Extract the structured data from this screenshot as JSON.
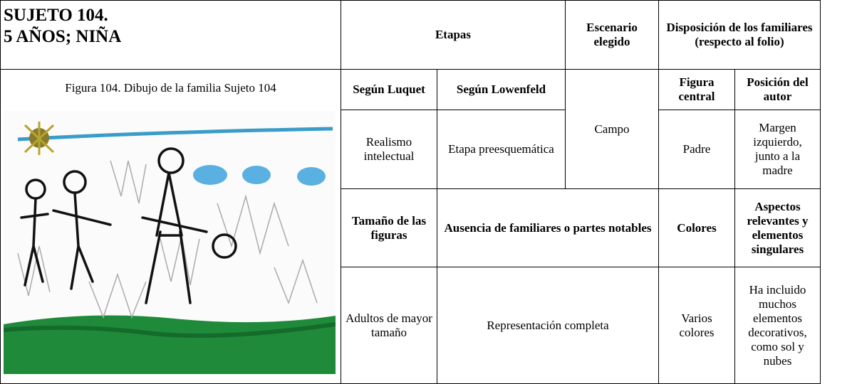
{
  "title_lines": [
    "SUJETO 104.",
    "5 AÑOS; NIÑA"
  ],
  "figure_caption": "Figura 104. Dibujo de la familia Sujeto 104",
  "cells": [
    {
      "text": "Etapas",
      "bold": true
    },
    {
      "text": "Escenario elegido",
      "bold": true
    },
    {
      "text": "Disposición de los familiares (respecto al folio)",
      "bold": true
    },
    {
      "text": "Según Luquet",
      "bold": true
    },
    {
      "text": "Según Lowenfeld",
      "bold": true
    },
    {
      "text": "Campo",
      "bold": false
    },
    {
      "text": "Figura central",
      "bold": true
    },
    {
      "text": "Posición del autor",
      "bold": true
    },
    {
      "text": "Realismo intelectual",
      "bold": false
    },
    {
      "text": "Etapa preesquemática",
      "bold": false
    },
    {
      "text": "Padre",
      "bold": false
    },
    {
      "text": "Margen izquierdo, junto a la madre",
      "bold": false
    },
    {
      "text": "Tamaño de las figuras",
      "bold": true
    },
    {
      "text": "Ausencia de familiares o partes notables",
      "bold": true
    },
    {
      "text": "Colores",
      "bold": true
    },
    {
      "text": "Aspectos relevantes y elementos singulares",
      "bold": true
    },
    {
      "text": "Adultos de mayor tamaño",
      "bold": false
    },
    {
      "text": "Representación completa",
      "bold": false
    },
    {
      "text": "Varios colores",
      "bold": false
    },
    {
      "text": "Ha incluido muchos elementos decorativos, como sol y nubes",
      "bold": false
    }
  ]
}
